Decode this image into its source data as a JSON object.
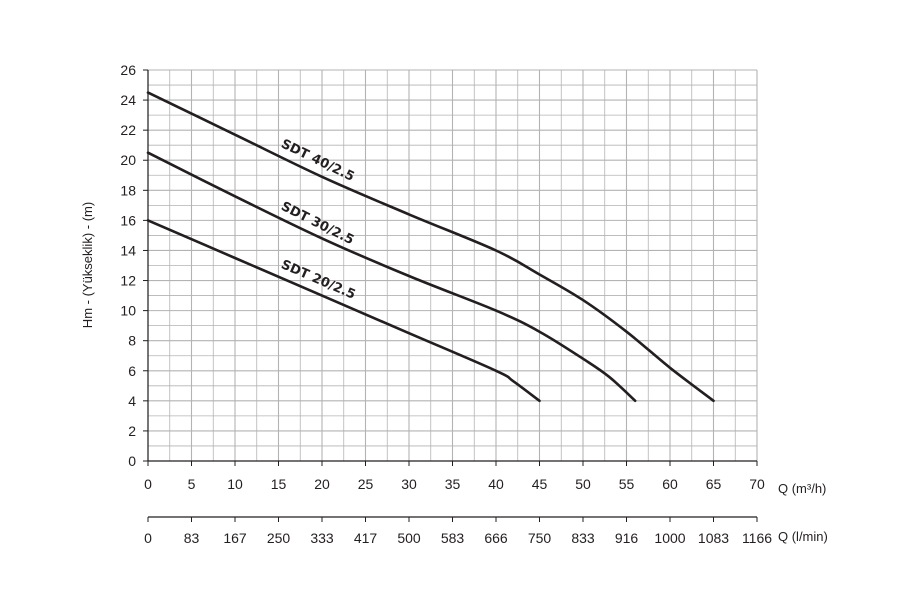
{
  "chart_data": {
    "type": "line",
    "title": "",
    "xlabel": "Q (m³/h)",
    "x2label": "Q (l/min)",
    "ylabel": "Hm - (Yükseklik) - (m)",
    "xlim": [
      0,
      70
    ],
    "ylim": [
      0,
      26
    ],
    "x_ticks": [
      "0",
      "5",
      "10",
      "15",
      "20",
      "25",
      "30",
      "35",
      "40",
      "45",
      "50",
      "55",
      "60",
      "65",
      "70"
    ],
    "x2_ticks": [
      "0",
      "83",
      "167",
      "250",
      "333",
      "417",
      "500",
      "583",
      "666",
      "750",
      "833",
      "916",
      "1000",
      "1083",
      "1166"
    ],
    "y_ticks": [
      "0",
      "2",
      "4",
      "6",
      "8",
      "10",
      "12",
      "14",
      "16",
      "18",
      "20",
      "22",
      "24",
      "26"
    ],
    "grid": true,
    "line_color": "#231f20",
    "grid_color": "#b3b3b3",
    "series": [
      {
        "name": "SDT 40/2.5",
        "x": [
          0,
          10,
          20,
          30,
          40,
          45,
          50,
          55,
          60,
          65
        ],
        "y": [
          24.5,
          21.7,
          18.9,
          16.4,
          14.0,
          12.4,
          10.7,
          8.6,
          6.2,
          4.0
        ]
      },
      {
        "name": "SDT 30/2.5",
        "x": [
          0,
          10,
          20,
          30,
          40,
          45,
          50,
          53,
          56
        ],
        "y": [
          20.5,
          17.6,
          14.8,
          12.3,
          10.0,
          8.6,
          6.8,
          5.6,
          4.0
        ]
      },
      {
        "name": "SDT 20/2.5",
        "x": [
          0,
          10,
          20,
          30,
          40,
          42,
          45
        ],
        "y": [
          16.0,
          13.5,
          11.0,
          8.5,
          6.0,
          5.3,
          4.0
        ]
      }
    ]
  }
}
